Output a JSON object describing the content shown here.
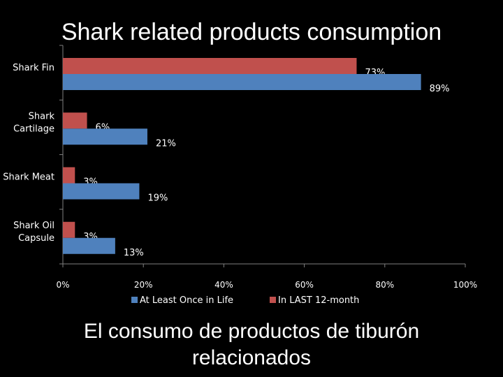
{
  "slide": {
    "title": "Shark related products consumption",
    "caption": "El consumo de productos de tiburón relacionados"
  },
  "chart_data": {
    "type": "bar",
    "orientation": "horizontal",
    "categories": [
      "Shark Fin",
      "Shark Cartilage",
      "Shark Meat",
      "Shark Oil Capsule"
    ],
    "series": [
      {
        "name": "In LAST 12-month",
        "values": [
          73,
          6,
          3,
          3
        ],
        "color": "#c0504d"
      },
      {
        "name": "At Least Once in Life",
        "values": [
          89,
          21,
          19,
          13
        ],
        "color": "#4f81bd"
      }
    ],
    "data_labels": [
      [
        "73%",
        "6%",
        "3%",
        "3%"
      ],
      [
        "89%",
        "21%",
        "19%",
        "13%"
      ]
    ],
    "xlim": [
      0,
      100
    ],
    "x_ticks": [
      "0%",
      "20%",
      "40%",
      "60%",
      "80%",
      "100%"
    ],
    "legend": {
      "placement": "bottom",
      "entries": [
        "At Least Once in Life",
        "In LAST 12-month"
      ]
    },
    "grid": false
  },
  "colors": {
    "background": "#000000",
    "text": "#ffffff",
    "axis": "#808080"
  }
}
